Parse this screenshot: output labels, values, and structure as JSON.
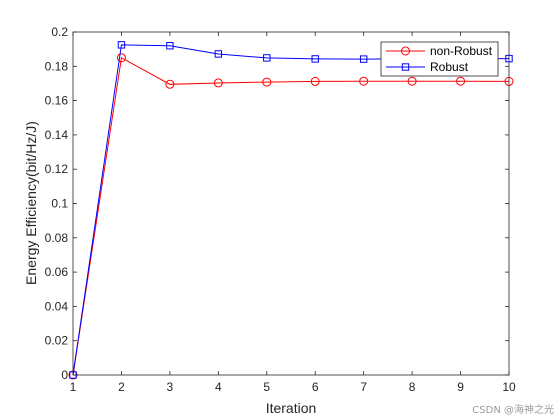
{
  "chart_data": {
    "type": "line",
    "title": "",
    "xlabel": "Iteration",
    "ylabel": "Energy Efficiency(bit/Hz/J)",
    "xlim": [
      1,
      10
    ],
    "ylim": [
      0,
      0.2
    ],
    "x": [
      1,
      2,
      3,
      4,
      5,
      6,
      7,
      8,
      9,
      10
    ],
    "xticks": [
      "1",
      "2",
      "3",
      "4",
      "5",
      "6",
      "7",
      "8",
      "9",
      "10"
    ],
    "yticks": [
      "0",
      "0.02",
      "0.04",
      "0.06",
      "0.08",
      "0.1",
      "0.12",
      "0.14",
      "0.16",
      "0.18",
      "0.2"
    ],
    "ytick_values": [
      0,
      0.02,
      0.04,
      0.06,
      0.08,
      0.1,
      0.12,
      0.14,
      0.16,
      0.18,
      0.2
    ],
    "grid": false,
    "legend_position": "top-right",
    "series": [
      {
        "name": "non-Robust",
        "color": "#ff0000",
        "marker": "circle",
        "values": [
          0.0,
          0.185,
          0.1695,
          0.1703,
          0.1708,
          0.1712,
          0.1713,
          0.1713,
          0.1713,
          0.1712
        ]
      },
      {
        "name": "Robust",
        "color": "#0000ff",
        "marker": "square",
        "values": [
          0.0,
          0.1925,
          0.192,
          0.1872,
          0.1849,
          0.1843,
          0.1842,
          0.1843,
          0.1843,
          0.1845
        ]
      }
    ]
  },
  "watermark": "CSDN @海神之光"
}
